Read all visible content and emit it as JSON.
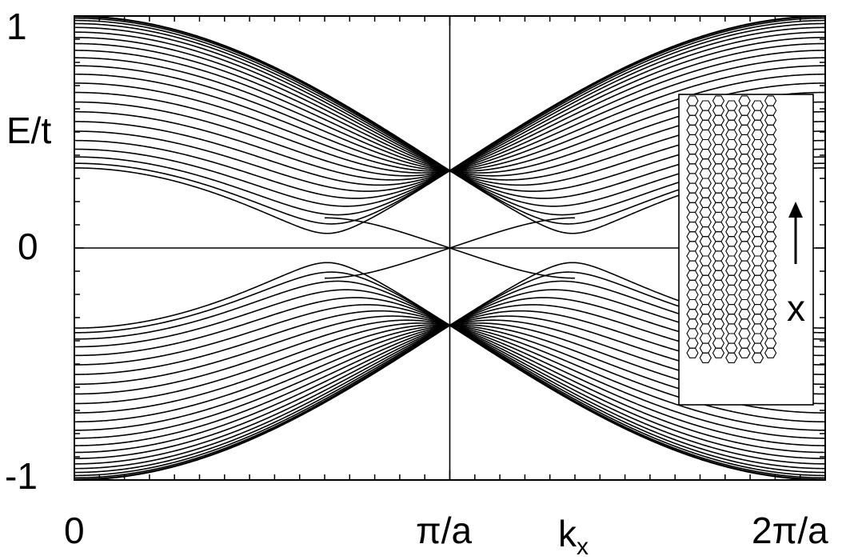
{
  "chart_data": {
    "type": "line",
    "title": "",
    "xlabel": "k",
    "xlabel_sub": "x",
    "ylabel": "E/t",
    "xlim": [
      0,
      6.2832
    ],
    "ylim": [
      -1,
      1
    ],
    "x_ticks": [
      {
        "value": 0,
        "label": "0"
      },
      {
        "value": 3.1416,
        "label": "π/a"
      },
      {
        "value": 6.2832,
        "label": "2π/a"
      }
    ],
    "y_ticks": [
      {
        "value": 1,
        "label": "1"
      },
      {
        "value": 0,
        "label": "0"
      },
      {
        "value": -1,
        "label": "-1"
      }
    ],
    "series_description": "Band structure of a zigzag graphene nanoribbon: 24 symmetric pairs of bulk bands meeting at E = ±1 at k = π/a, a pair of flat edge-state bands near E = 0 between k ≈ 2π/3a and 4π/3a, plus horizontal line E = 0 and vertical line k = π/a.",
    "bands_count": 24,
    "edge_state_k_range": [
      2.0944,
      4.1888
    ],
    "reference_lines": [
      {
        "orientation": "horizontal",
        "value": 0
      },
      {
        "orientation": "vertical",
        "value": 3.1416
      }
    ],
    "grid": false,
    "legend": "none",
    "inset": {
      "description": "zigzag honeycomb ribbon lattice",
      "arrow_label": "x"
    }
  },
  "labels": {
    "ytick_top": "1",
    "ytick_mid": "0",
    "ytick_bottom": "-1",
    "xtick_left": "0",
    "xtick_mid": "π/a",
    "xtick_right": "2π/a",
    "ylabel": "E/t",
    "xlabel_main": "k",
    "xlabel_sub": "x",
    "inset_arrow": "x"
  },
  "colors": {
    "line": "#000000",
    "background": "#ffffff"
  }
}
